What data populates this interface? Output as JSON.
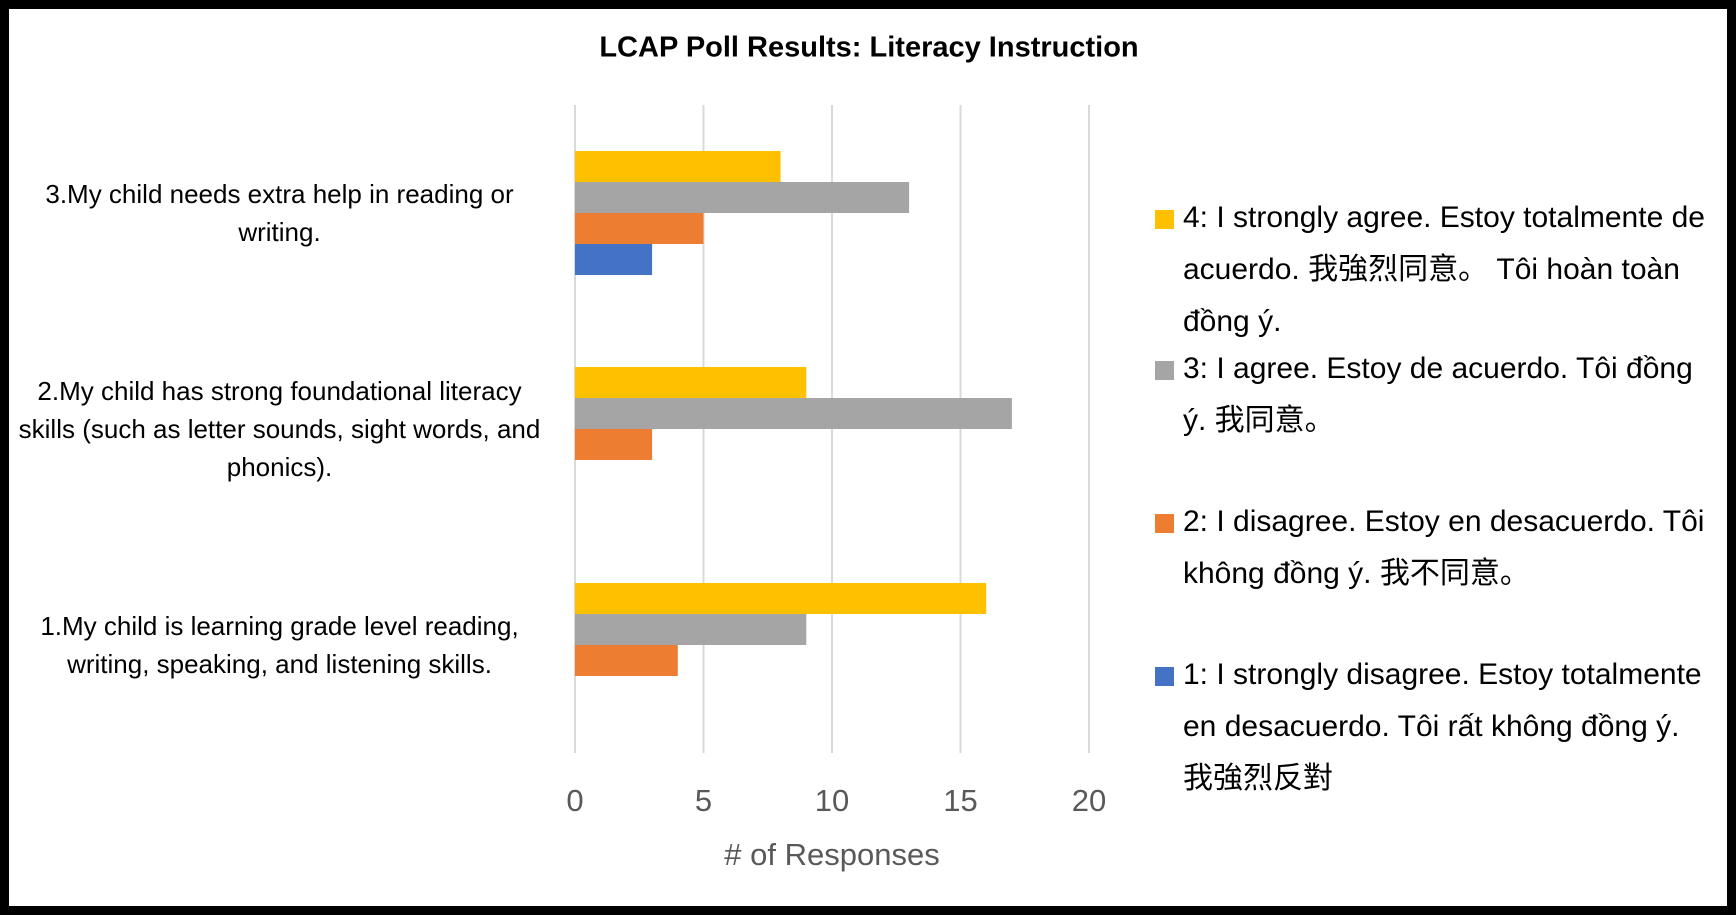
{
  "chart_data": {
    "type": "hbar",
    "title": "LCAP Poll Results: Literacy Instruction",
    "x_label": "# of Responses",
    "categories": [
      "1.My child is learning grade level reading, writing, speaking, and listening skills.",
      "2.My child has strong foundational literacy skills (such as letter sounds, sight words, and phonics).",
      "3.My child needs extra help in reading or writing."
    ],
    "series": [
      {
        "name": "4: I strongly agree. Estoy totalmente de acuerdo. 我強烈同意。 Tôi hoàn toàn đồng ý.",
        "color": "#FFC000",
        "values": [
          16,
          9,
          8
        ]
      },
      {
        "name": "3: I agree. Estoy de acuerdo. Tôi đồng ý.  我同意。",
        "color": "#A5A5A5",
        "values": [
          9,
          17,
          13
        ]
      },
      {
        "name": "2: I disagree. Estoy en desacuerdo. Tôi không đồng ý.  我不同意。",
        "color": "#ED7D31",
        "values": [
          4,
          3,
          5
        ]
      },
      {
        "name": "1: I strongly disagree. Estoy totalmente en desacuerdo. Tôi rất không đồng ý. 我強烈反對",
        "color": "#4472C4",
        "values": [
          0,
          0,
          3
        ]
      }
    ],
    "xlim": [
      0,
      20
    ],
    "xticks": [
      0,
      5,
      10,
      15,
      20
    ],
    "grid": true,
    "legend": "right"
  }
}
